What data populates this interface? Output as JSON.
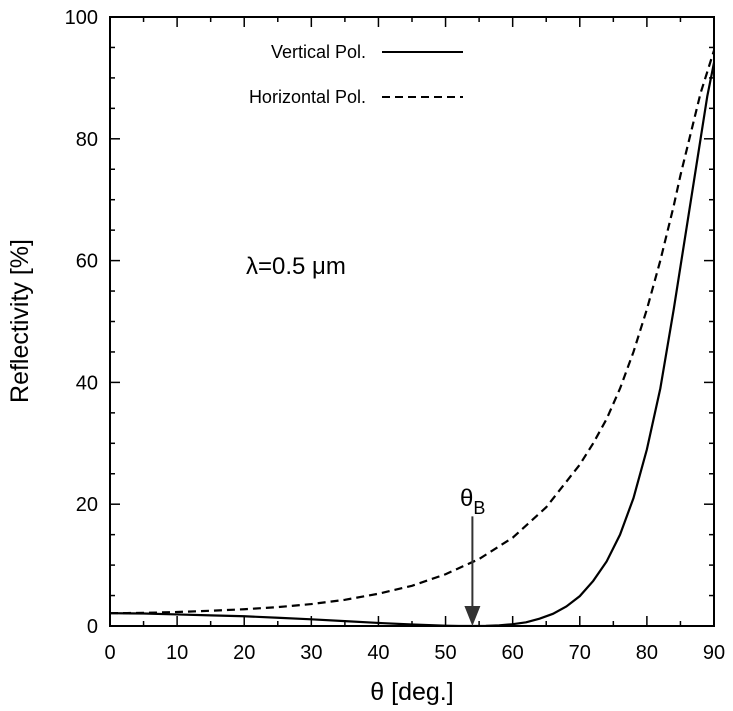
{
  "chart_data": {
    "type": "line",
    "xlabel": "θ [deg.]",
    "ylabel": "Reflectivity [%]",
    "xlim": [
      0,
      90
    ],
    "ylim": [
      0,
      100
    ],
    "xticks": [
      "0",
      "10",
      "20",
      "30",
      "40",
      "50",
      "60",
      "70",
      "80",
      "90"
    ],
    "yticks": [
      "0",
      "20",
      "40",
      "60",
      "80",
      "100"
    ],
    "grid": false,
    "legend_position": "top-left",
    "series": [
      {
        "name": "Vertical Pol.",
        "style": "solid",
        "x": [
          0,
          5,
          10,
          15,
          20,
          25,
          30,
          35,
          40,
          45,
          50,
          52,
          54,
          56,
          58,
          60,
          62,
          64,
          66,
          68,
          70,
          72,
          74,
          76,
          78,
          80,
          82,
          84,
          85,
          86,
          87,
          88,
          89,
          90
        ],
        "y": [
          2.1,
          2.05,
          1.9,
          1.75,
          1.6,
          1.35,
          1.1,
          0.8,
          0.5,
          0.25,
          0.05,
          0.01,
          0.0,
          0.02,
          0.1,
          0.3,
          0.6,
          1.2,
          2.0,
          3.2,
          4.9,
          7.4,
          10.6,
          15.0,
          21.0,
          29.0,
          39.0,
          52.0,
          59.0,
          66.0,
          73.0,
          80.0,
          87.0,
          92.5
        ]
      },
      {
        "name": "Horizontal Pol.",
        "style": "dashed",
        "x": [
          0,
          5,
          10,
          15,
          20,
          25,
          30,
          35,
          40,
          45,
          50,
          55,
          60,
          65,
          70,
          72,
          74,
          76,
          78,
          80,
          82,
          84,
          85,
          86,
          87,
          88,
          89,
          90
        ],
        "y": [
          2.1,
          2.15,
          2.3,
          2.5,
          2.75,
          3.1,
          3.6,
          4.3,
          5.3,
          6.6,
          8.5,
          11.0,
          14.5,
          19.5,
          26.5,
          30.0,
          34.0,
          39.0,
          45.0,
          52.0,
          60.0,
          69.0,
          74.0,
          78.5,
          83.0,
          87.5,
          91.0,
          94.5
        ]
      }
    ],
    "annotations": [
      {
        "text": "λ=0.5 μm"
      },
      {
        "text": "θ",
        "subscript": "B",
        "arrow_x": 54,
        "arrow_y_from": 18,
        "arrow_y_to": 0
      }
    ]
  }
}
